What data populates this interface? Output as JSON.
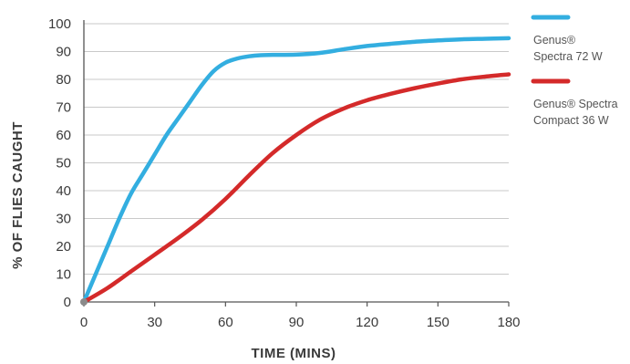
{
  "chart_data": {
    "type": "line",
    "title": "",
    "xlabel": "TIME (MINS)",
    "ylabel": "% OF FLIES CAUGHT",
    "xlim": [
      0,
      180
    ],
    "ylim": [
      0,
      100
    ],
    "x_ticks": [
      0,
      30,
      60,
      90,
      120,
      150,
      180
    ],
    "y_ticks": [
      0,
      10,
      20,
      30,
      40,
      50,
      60,
      70,
      80,
      90,
      100
    ],
    "grid": "horizontal",
    "legend_position": "right",
    "series": [
      {
        "name_line1": "Genus® ",
        "name_line2": "Spectra 72 W",
        "color": "#33aee0",
        "x": [
          0,
          5,
          10,
          15,
          20,
          25,
          30,
          35,
          40,
          45,
          50,
          55,
          60,
          65,
          70,
          75,
          80,
          90,
          100,
          110,
          120,
          130,
          140,
          150,
          160,
          170,
          180
        ],
        "y": [
          0,
          10,
          20,
          30,
          39,
          46,
          53,
          60,
          66,
          72,
          78,
          83,
          86,
          87.5,
          88.3,
          88.7,
          88.8,
          88.9,
          89.5,
          90.8,
          92,
          92.8,
          93.5,
          94,
          94.4,
          94.6,
          94.8
        ]
      },
      {
        "name_line1": "Genus® Spectra",
        "name_line2": "Compact 36 W",
        "color": "#d42a2a",
        "x": [
          0,
          10,
          20,
          30,
          40,
          50,
          60,
          70,
          80,
          90,
          100,
          110,
          120,
          130,
          140,
          150,
          160,
          170,
          180
        ],
        "y": [
          0,
          5,
          11,
          17,
          23,
          29.5,
          37,
          45.5,
          53.5,
          60,
          65.5,
          69.5,
          72.5,
          74.8,
          76.8,
          78.5,
          80,
          81,
          81.8
        ]
      }
    ]
  }
}
